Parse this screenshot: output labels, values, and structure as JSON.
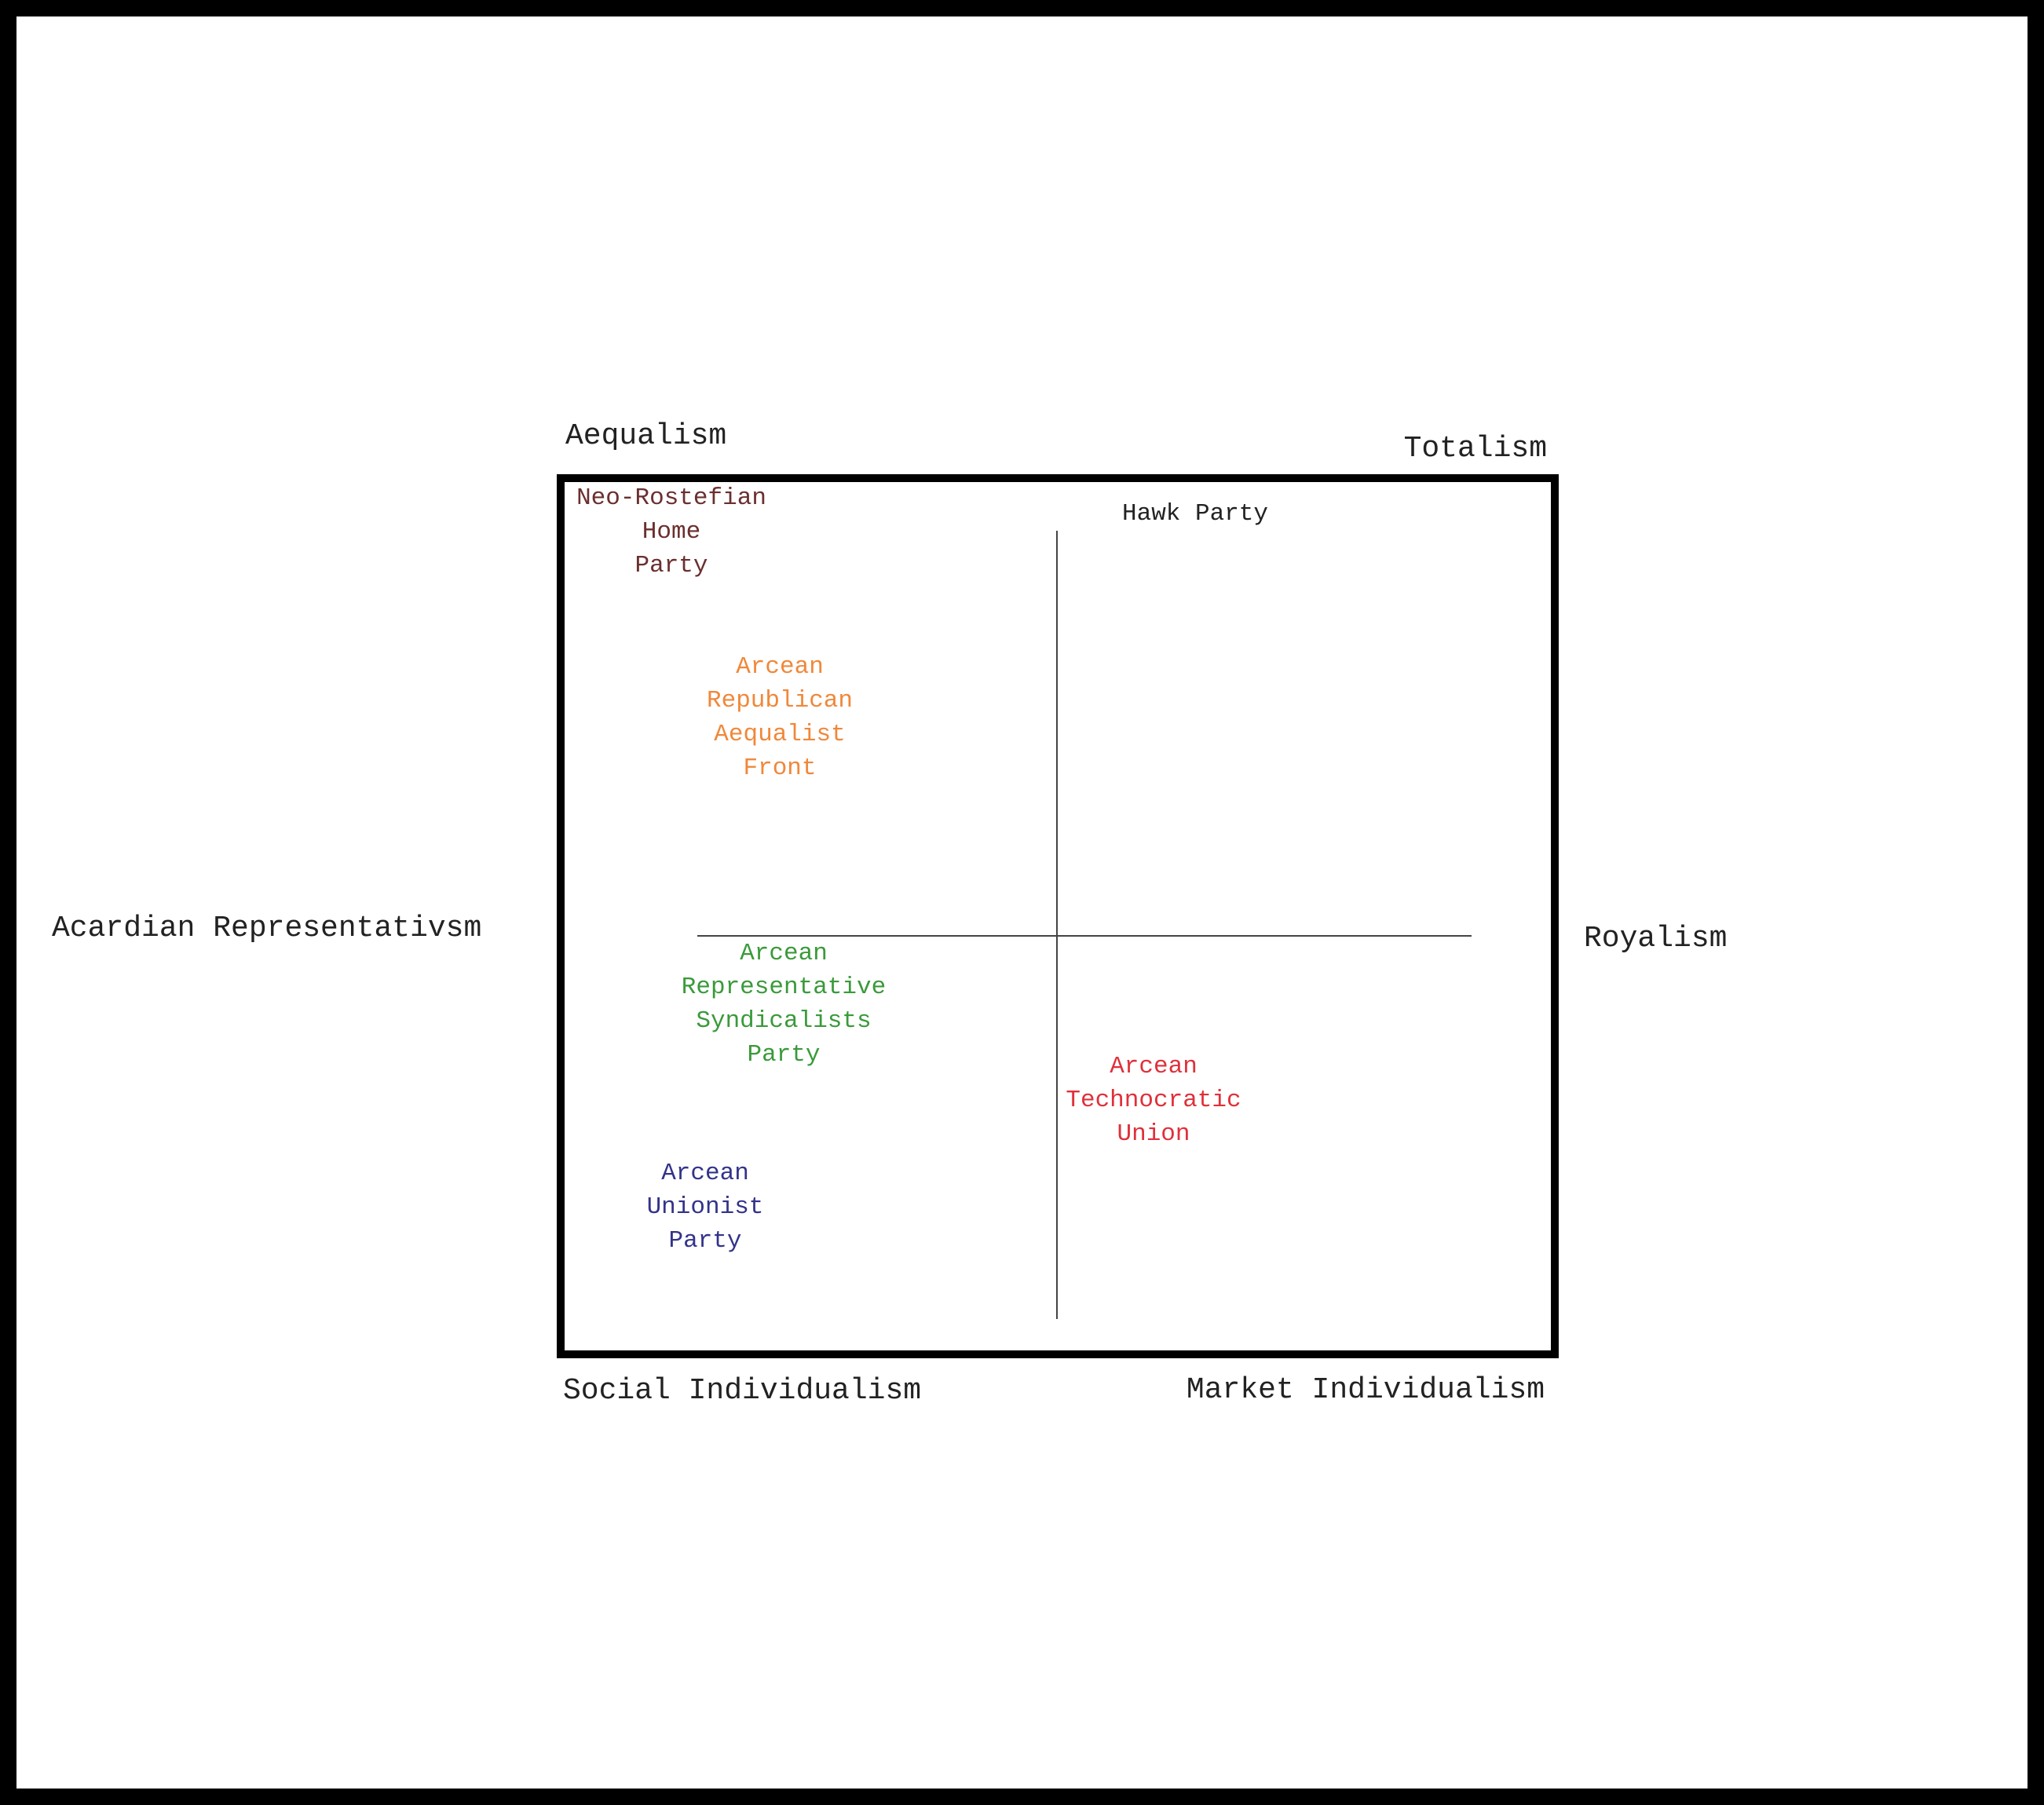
{
  "axes": {
    "top_left": "Aequalism",
    "top_right": "Totalism",
    "left": "Acardian Representativsm",
    "right": "Royalism",
    "bottom_left": "Social Individualism",
    "bottom_right": "Market Individualism"
  },
  "parties": [
    {
      "lines": [
        "Neo-Rostefian",
        "Home",
        "Party"
      ]
    },
    {
      "lines": [
        "Hawk Party"
      ]
    },
    {
      "lines": [
        "Arcean",
        "Republican",
        "Aequalist",
        "Front"
      ]
    },
    {
      "lines": [
        "Arcean",
        "Representative",
        "Syndicalists",
        "Party"
      ]
    },
    {
      "lines": [
        "Arcean",
        "Technocratic",
        "Union"
      ]
    },
    {
      "lines": [
        "Arcean",
        "Unionist",
        "Party"
      ]
    }
  ]
}
